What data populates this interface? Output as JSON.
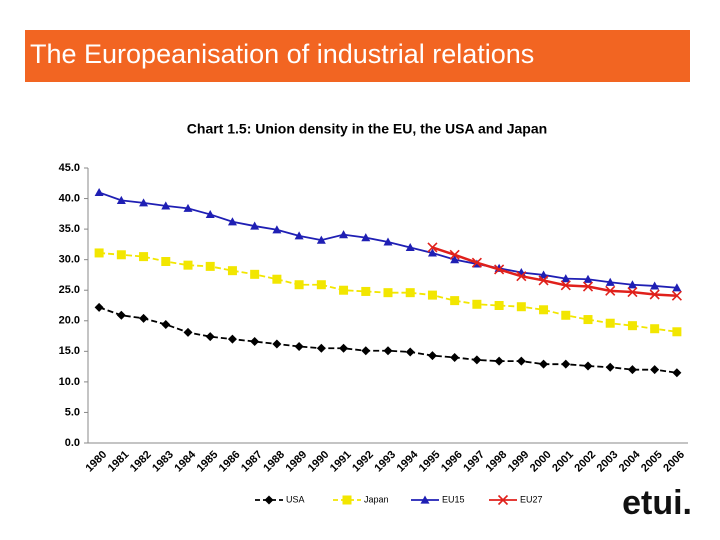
{
  "header": {
    "title": "The Europeanisation of industrial relations"
  },
  "logo": "etui.",
  "chart_data": {
    "type": "line",
    "title": "Chart 1.5:  Union density in the EU, the USA and Japan",
    "categories": [
      "1980",
      "1981",
      "1982",
      "1983",
      "1984",
      "1985",
      "1986",
      "1987",
      "1988",
      "1989",
      "1990",
      "1991",
      "1992",
      "1993",
      "1994",
      "1995",
      "1996",
      "1997",
      "1998",
      "1999",
      "2000",
      "2001",
      "2002",
      "2003",
      "2004",
      "2005",
      "2006"
    ],
    "series": [
      {
        "name": "USA",
        "color": "#000000",
        "marker": "diamond",
        "line_style": "dashed",
        "values": [
          22.2,
          20.9,
          20.4,
          19.4,
          18.1,
          17.4,
          17.0,
          16.6,
          16.2,
          15.8,
          15.5,
          15.5,
          15.1,
          15.1,
          14.9,
          14.3,
          14.0,
          13.6,
          13.4,
          13.4,
          12.9,
          12.9,
          12.6,
          12.4,
          12.0,
          12.0,
          11.5
        ]
      },
      {
        "name": "Japan",
        "color": "#f2e600",
        "marker": "square",
        "line_style": "dashed",
        "values": [
          31.1,
          30.8,
          30.5,
          29.7,
          29.1,
          28.9,
          28.2,
          27.6,
          26.8,
          25.9,
          25.9,
          25.0,
          24.8,
          24.6,
          24.6,
          24.2,
          23.3,
          22.7,
          22.5,
          22.3,
          21.8,
          20.9,
          20.2,
          19.6,
          19.2,
          18.7,
          18.2
        ]
      },
      {
        "name": "EU15",
        "color": "#1f1fb4",
        "marker": "triangle",
        "line_style": "solid",
        "values": [
          41.0,
          39.7,
          39.3,
          38.8,
          38.4,
          37.4,
          36.2,
          35.5,
          34.9,
          33.9,
          33.2,
          34.1,
          33.6,
          32.9,
          32.0,
          31.1,
          30.0,
          29.3,
          28.6,
          27.9,
          27.5,
          26.9,
          26.8,
          26.3,
          25.9,
          25.7,
          25.4
        ]
      },
      {
        "name": "EU27",
        "color": "#e0201b",
        "marker": "x",
        "line_style": "solid",
        "values": [
          null,
          null,
          null,
          null,
          null,
          null,
          null,
          null,
          null,
          null,
          null,
          null,
          null,
          null,
          null,
          32.0,
          30.8,
          29.5,
          28.4,
          27.3,
          26.6,
          25.8,
          25.6,
          24.9,
          24.7,
          24.3,
          24.1
        ]
      }
    ],
    "ylim": [
      0,
      45
    ],
    "yticks": [
      {
        "value": 0,
        "label": "0.0"
      },
      {
        "value": 5,
        "label": "5.0"
      },
      {
        "value": 10,
        "label": "10.0"
      },
      {
        "value": 15,
        "label": "15.0"
      },
      {
        "value": 20,
        "label": "20.0"
      },
      {
        "value": 25,
        "label": "25.0"
      },
      {
        "value": 30,
        "label": "30.0"
      },
      {
        "value": 35,
        "label": "35.0"
      },
      {
        "value": 40,
        "label": "40.0"
      },
      {
        "value": 45,
        "label": "45.0"
      }
    ],
    "grid": false,
    "legend": "bottom"
  }
}
